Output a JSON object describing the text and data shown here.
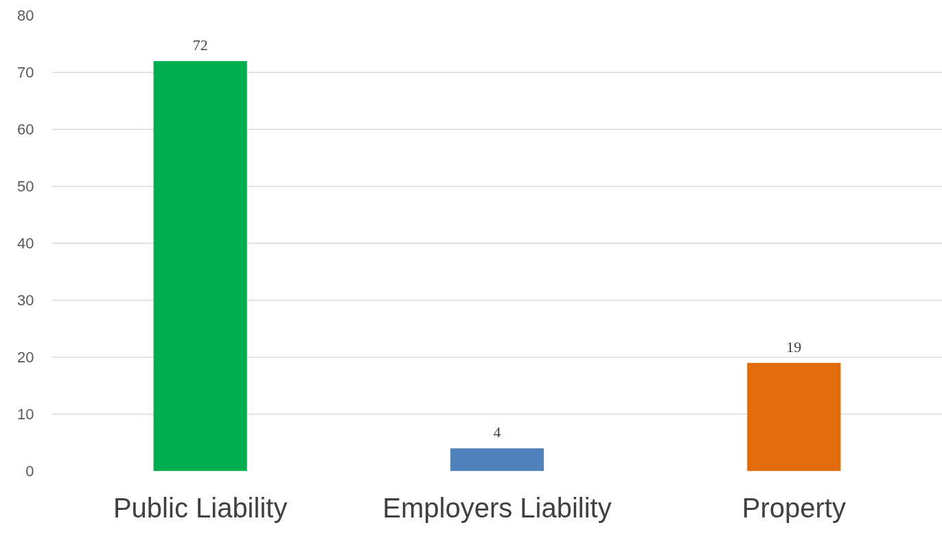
{
  "chart_data": {
    "type": "bar",
    "categories": [
      "Public Liability",
      "Employers Liability",
      "Property"
    ],
    "values": [
      72,
      4,
      19
    ],
    "colors": [
      "#00b050",
      "#4f81bd",
      "#e36c0a"
    ],
    "ylim": [
      0,
      80
    ],
    "yticks": [
      0,
      10,
      20,
      30,
      40,
      50,
      60,
      70,
      80
    ],
    "grid": "y",
    "data_labels": true
  }
}
